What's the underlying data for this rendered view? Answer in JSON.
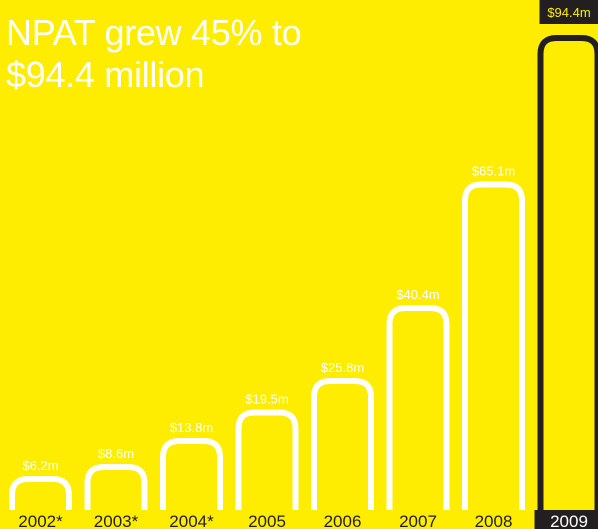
{
  "title_lines": [
    "NPAT grew 45% to",
    "$94.4 million"
  ],
  "colors": {
    "background": "#FFED00",
    "bar_outline": "#FFFFFF",
    "highlight_outline": "#231F20",
    "label_highlight_bg": "#231F20",
    "axis_highlight_text": "#FFFFFF"
  },
  "chart_data": {
    "type": "bar",
    "categories": [
      "2002*",
      "2003*",
      "2004*",
      "2005",
      "2006",
      "2007",
      "2008",
      "2009"
    ],
    "values": [
      6.2,
      8.6,
      13.8,
      19.5,
      25.8,
      40.4,
      65.1,
      94.4
    ],
    "value_labels": [
      "$6.2m",
      "$8.6m",
      "$13.8m",
      "$19.5m",
      "$25.8m",
      "$40.4m",
      "$65.1m",
      "$94.4m"
    ],
    "highlight_index": 7,
    "ylim": [
      0,
      94.4
    ]
  }
}
